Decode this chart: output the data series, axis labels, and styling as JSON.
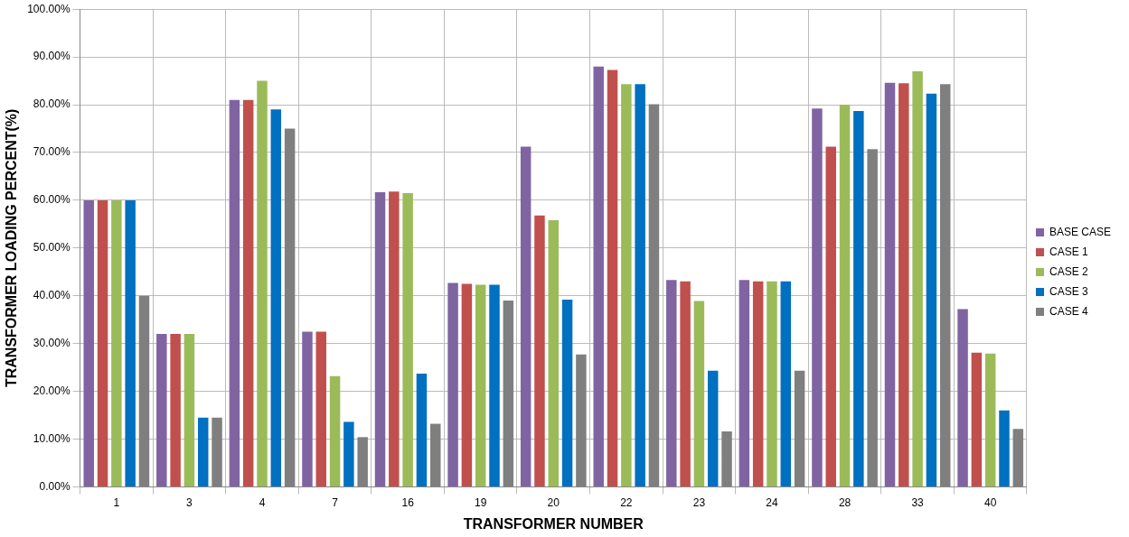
{
  "chart_data": {
    "type": "bar",
    "xlabel": "TRANSFORMER NUMBER",
    "ylabel": "TRANSFORMER LOADING PERCENT(%)",
    "categories": [
      "1",
      "3",
      "4",
      "7",
      "16",
      "19",
      "20",
      "22",
      "23",
      "24",
      "28",
      "33",
      "40"
    ],
    "series": [
      {
        "name": "BASE CASE",
        "color": "#8064a2",
        "values": [
          60,
          32,
          81,
          32.5,
          61.7,
          42.7,
          71.2,
          88,
          43.3,
          43.3,
          79.2,
          84.6,
          37.2
        ]
      },
      {
        "name": "CASE 1",
        "color": "#c0504d",
        "values": [
          60,
          32,
          81,
          32.5,
          61.8,
          42.5,
          56.8,
          87.3,
          43,
          43,
          71.2,
          84.5,
          28.1
        ]
      },
      {
        "name": "CASE 2",
        "color": "#9bbb59",
        "values": [
          60,
          32,
          85,
          23.2,
          61.5,
          42.3,
          55.8,
          84.3,
          38.9,
          43,
          80,
          87,
          27.9
        ]
      },
      {
        "name": "CASE 3",
        "color": "#0070c0",
        "values": [
          60,
          14.5,
          79,
          13.6,
          23.7,
          42.3,
          39.2,
          84.3,
          24.3,
          43,
          78.7,
          82.3,
          16
        ]
      },
      {
        "name": "CASE 4",
        "color": "#7f7f7f",
        "values": [
          40,
          14.5,
          75,
          10.4,
          13.2,
          39,
          27.7,
          80.1,
          11.6,
          24.3,
          70.7,
          84.3,
          12.1
        ]
      }
    ],
    "ylim": [
      0,
      100
    ],
    "yticks": [
      {
        "value": 0,
        "label": "0.00%"
      },
      {
        "value": 10,
        "label": "10.00%"
      },
      {
        "value": 20,
        "label": "20.00%"
      },
      {
        "value": 30,
        "label": "30.00%"
      },
      {
        "value": 40,
        "label": "40.00%"
      },
      {
        "value": 50,
        "label": "50.00%"
      },
      {
        "value": 60,
        "label": "60.00%"
      },
      {
        "value": 70,
        "label": "70.00%"
      },
      {
        "value": 80,
        "label": "80.00%"
      },
      {
        "value": 90,
        "label": "90.00%"
      },
      {
        "value": 100,
        "label": "100.00%"
      }
    ],
    "grid": true,
    "legend": "right"
  }
}
